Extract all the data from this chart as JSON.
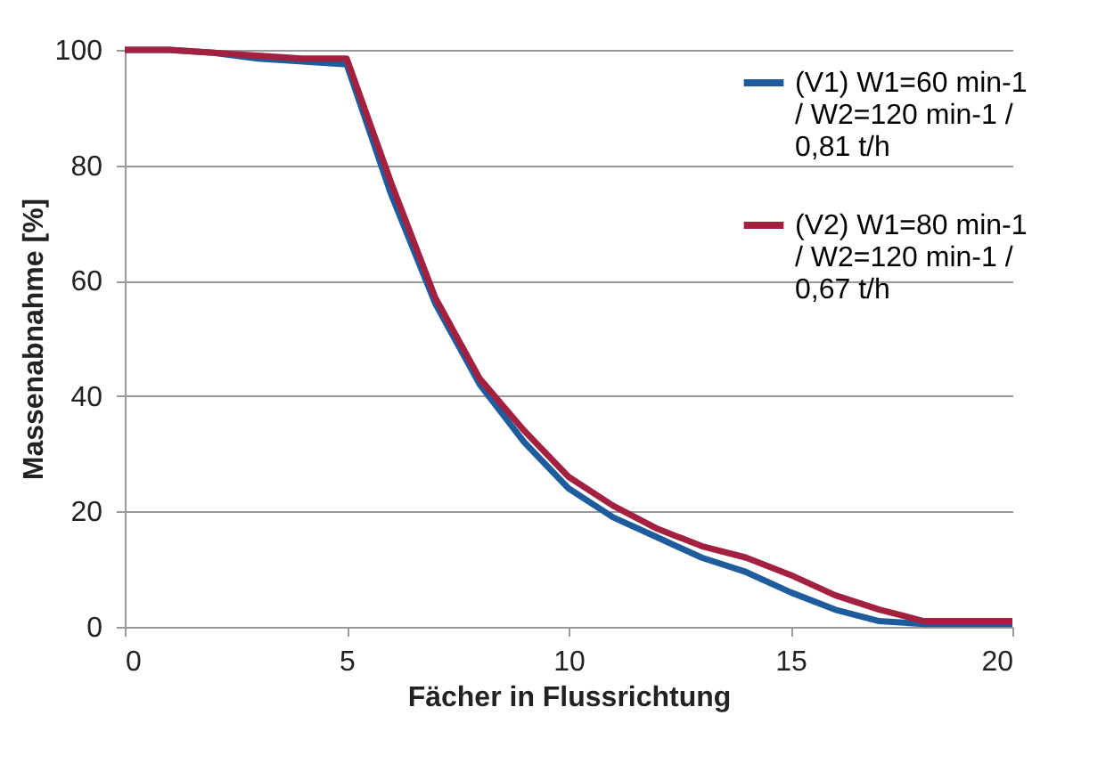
{
  "chart_data": {
    "type": "line",
    "xlabel": "Fächer in Flussrichtung",
    "ylabel": "Massenabnahme [%]",
    "x": [
      0,
      1,
      2,
      3,
      4,
      5,
      6,
      7,
      8,
      9,
      10,
      11,
      12,
      13,
      14,
      15,
      16,
      17,
      18,
      19,
      20
    ],
    "series": [
      {
        "name": "(V1)  W1=60 min-1 / W2=120 min-1 / 0,81 t/h",
        "color": "#1f5c9e",
        "values": [
          100,
          100,
          99.5,
          98.5,
          98,
          97.5,
          75,
          56,
          42,
          32,
          24,
          19,
          15.5,
          12,
          9.5,
          6,
          3,
          1,
          0.5,
          0.5,
          0.5
        ]
      },
      {
        "name": "(V2)  W1=80 min-1 / W2=120 min-1 / 0,67 t/h",
        "color": "#a3203f",
        "values": [
          100,
          100,
          99.5,
          99,
          98.5,
          98.5,
          77,
          57,
          43,
          34,
          26,
          21,
          17,
          14,
          12,
          9,
          5.5,
          3,
          1,
          1,
          1
        ]
      }
    ],
    "xlim": [
      0,
      20
    ],
    "xticks": [
      0,
      5,
      10,
      15,
      20
    ],
    "ylim": [
      0,
      100
    ],
    "yticks": [
      0,
      20,
      40,
      60,
      80,
      100
    ],
    "grid": "y",
    "legend": "right",
    "marker": "none",
    "line_style": "solid"
  }
}
